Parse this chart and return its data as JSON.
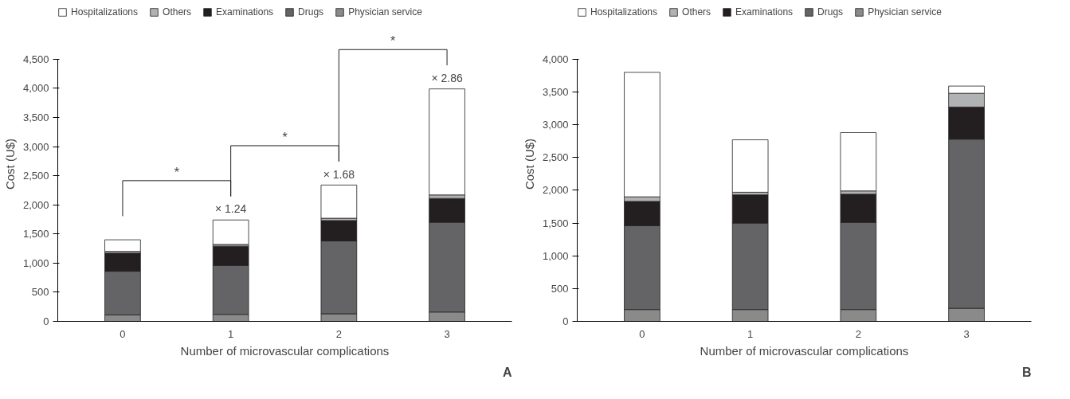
{
  "chart_data": [
    {
      "type": "bar",
      "stacked": true,
      "title": "A",
      "xlabel": "Number of microvascular complications",
      "ylabel": "Cost (U$)",
      "categories": [
        "0",
        "1",
        "2",
        "3"
      ],
      "ylim": [
        0,
        4500
      ],
      "yticks": [
        0,
        500,
        {
          "value": 1000,
          "label": "1,000"
        },
        {
          "value": 1500,
          "label": "1,500"
        },
        {
          "value": 2000,
          "label": "2,000"
        },
        {
          "value": 2500,
          "label": "2,500"
        },
        {
          "value": 3000,
          "label": "3,000"
        },
        {
          "value": 3500,
          "label": "3,500"
        },
        {
          "value": 4000,
          "label": "4,000"
        },
        {
          "value": 4500,
          "label": "4,500"
        }
      ],
      "legend": "top",
      "grid": false,
      "series": [
        {
          "name": "Physician service",
          "color": "#8a8a8a",
          "values": [
            110,
            120,
            130,
            160
          ]
        },
        {
          "name": "Drugs",
          "color": "#646466",
          "values": [
            750,
            840,
            1250,
            1540
          ]
        },
        {
          "name": "Examinations",
          "color": "#231f20",
          "values": [
            310,
            330,
            350,
            410
          ]
        },
        {
          "name": "Others",
          "color": "#b1b2b4",
          "values": [
            30,
            30,
            40,
            60
          ]
        },
        {
          "name": "Hospitalizations",
          "color": "#ffffff",
          "values": [
            200,
            420,
            570,
            1820
          ]
        }
      ],
      "annotations": [
        "*",
        "*",
        "*",
        {
          "text": "× 1.24",
          "x": "1",
          "y": 1740
        },
        {
          "text": "× 1.68",
          "x": "2",
          "y": 2335
        },
        {
          "text": "× 2.86",
          "x": "3",
          "y": 3990
        }
      ]
    },
    {
      "type": "bar",
      "stacked": true,
      "title": "B",
      "xlabel": "Number of microvascular complications",
      "ylabel": "Cost (U$)",
      "categories": [
        "0",
        "1",
        "2",
        "3"
      ],
      "ylim": [
        0,
        4000
      ],
      "yticks": [
        0,
        500,
        {
          "value": 1000,
          "label": "1,000"
        },
        {
          "value": 1500,
          "label": "1,500"
        },
        {
          "value": 2000,
          "label": "2,000"
        },
        {
          "value": 2500,
          "label": "2,500"
        },
        {
          "value": 3000,
          "label": "3,000"
        },
        {
          "value": 3500,
          "label": "3,500"
        },
        {
          "value": 4000,
          "label": "4,000"
        }
      ],
      "legend": "top",
      "grid": false,
      "series": [
        {
          "name": "Physician service",
          "color": "#8a8a8a",
          "values": [
            180,
            180,
            180,
            200
          ]
        },
        {
          "name": "Drugs",
          "color": "#646466",
          "values": [
            1280,
            1320,
            1330,
            2580
          ]
        },
        {
          "name": "Examinations",
          "color": "#231f20",
          "values": [
            370,
            430,
            430,
            490
          ]
        },
        {
          "name": "Others",
          "color": "#b1b2b4",
          "values": [
            70,
            40,
            50,
            210
          ]
        },
        {
          "name": "Hospitalizations",
          "color": "#ffffff",
          "values": [
            1900,
            800,
            890,
            110
          ]
        }
      ]
    }
  ]
}
